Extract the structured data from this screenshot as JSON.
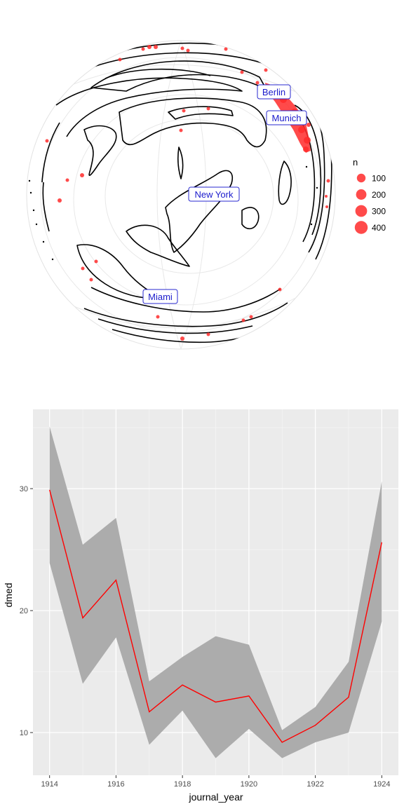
{
  "chart_data": [
    {
      "type": "scatter",
      "subtype": "orthographic-map",
      "cities": [
        {
          "name": "Berlin"
        },
        {
          "name": "Munich"
        },
        {
          "name": "New York"
        },
        {
          "name": "Miami"
        }
      ],
      "legend": {
        "title": "n",
        "entries": [
          {
            "label": "100",
            "value": 100
          },
          {
            "label": "200",
            "value": 200
          },
          {
            "label": "300",
            "value": 300
          },
          {
            "label": "400",
            "value": 400
          }
        ],
        "position": "right"
      },
      "colors": {
        "point": "#ff2a2a",
        "label_text": "#1a1acc",
        "label_border": "#2a2ad0",
        "coast": "#000000",
        "graticule": "#e6e6e6"
      }
    },
    {
      "type": "line",
      "xlabel": "journal_year",
      "ylabel": "dmed",
      "xlim": [
        1913.5,
        1924.5
      ],
      "ylim": [
        6.5,
        36.5
      ],
      "xticks": [
        1914,
        1916,
        1918,
        1920,
        1922,
        1924
      ],
      "yticks": [
        10,
        20,
        30
      ],
      "x": [
        1914,
        1915,
        1916,
        1917,
        1918,
        1919,
        1920,
        1921,
        1922,
        1923,
        1924
      ],
      "series": [
        {
          "values": [
            29.9,
            19.4,
            22.5,
            11.7,
            13.9,
            12.5,
            13.0,
            9.2,
            10.6,
            12.9,
            25.6
          ],
          "lower": [
            23.9,
            14.0,
            17.8,
            9.0,
            11.8,
            7.9,
            10.3,
            7.9,
            9.2,
            10.0,
            19.1
          ],
          "upper": [
            35.1,
            25.4,
            27.6,
            14.2,
            16.2,
            17.9,
            17.2,
            10.2,
            12.1,
            15.8,
            30.6
          ]
        }
      ],
      "grid": true,
      "colors": {
        "line": "#ff0000",
        "ribbon": "#acacac",
        "panel": "#ebebeb",
        "grid_major": "#ffffff"
      }
    }
  ]
}
